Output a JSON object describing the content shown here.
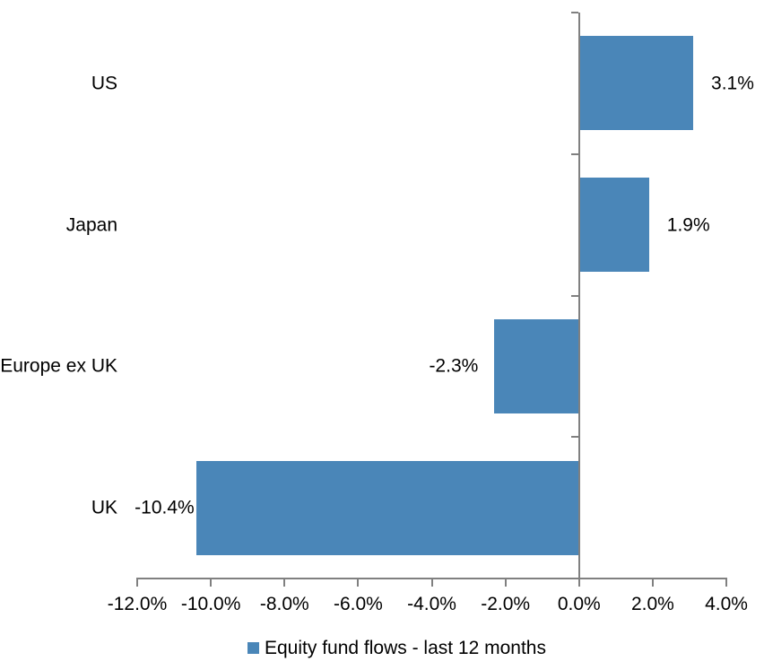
{
  "chart_data": {
    "type": "bar",
    "orientation": "horizontal",
    "title": "",
    "categories": [
      "US",
      "Japan",
      "Europe ex UK",
      "UK"
    ],
    "series": [
      {
        "name": "Equity fund flows - last 12 months",
        "values": [
          3.1,
          1.9,
          -2.3,
          -10.4
        ],
        "value_labels": [
          "3.1%",
          "1.9%",
          "-2.3%",
          "-10.4%"
        ]
      }
    ],
    "xlim": [
      -12,
      4
    ],
    "x_ticks": [
      -12,
      -10,
      -8,
      -6,
      -4,
      -2,
      0,
      2,
      4
    ],
    "x_tick_labels": [
      "-12.0%",
      "-10.0%",
      "-8.0%",
      "-6.0%",
      "-4.0%",
      "-2.0%",
      "0.0%",
      "2.0%",
      "4.0%"
    ],
    "grid": false,
    "legend_position": "bottom",
    "colors": {
      "bar": "#4A86B8",
      "axis": "#808080",
      "text": "#000000",
      "background": "#FFFFFF"
    }
  }
}
